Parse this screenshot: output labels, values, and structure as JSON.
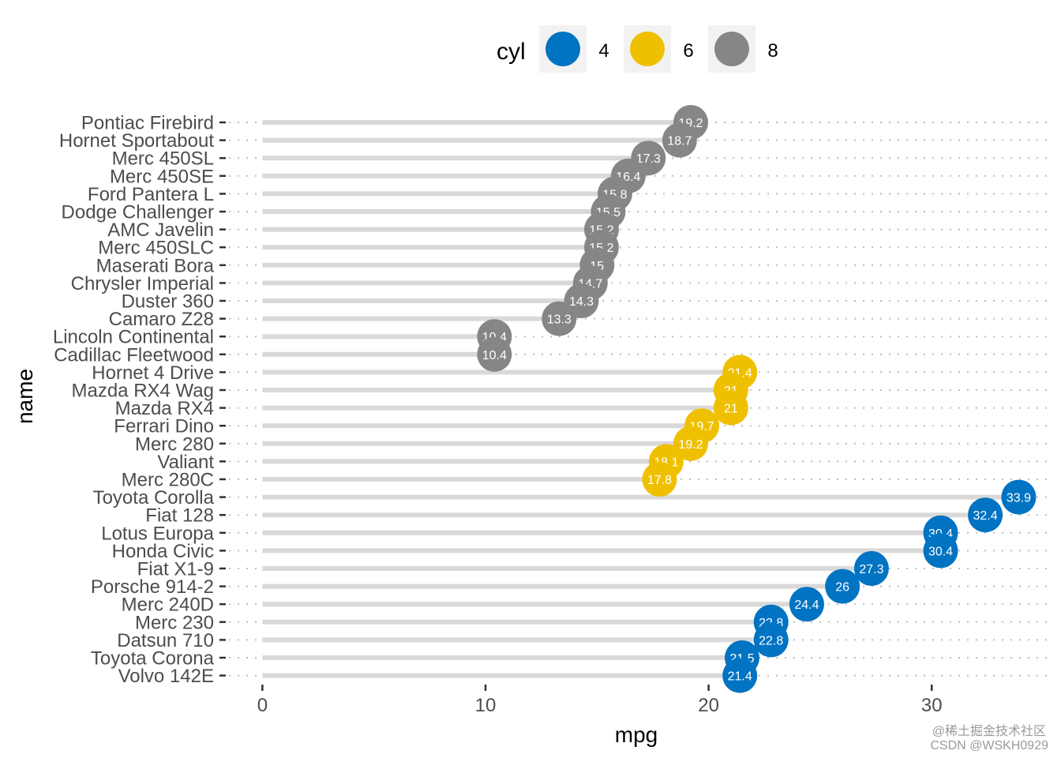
{
  "chart_data": {
    "type": "lollipop",
    "xlabel": "mpg",
    "ylabel": "name",
    "xlim": [
      -1.5,
      35.3
    ],
    "xticks": [
      0,
      10,
      20,
      30
    ],
    "grid": "dotted-horizontal",
    "legend": {
      "title": "cyl",
      "position": "top",
      "entries": [
        {
          "label": "4",
          "color": "#0073C2"
        },
        {
          "label": "6",
          "color": "#EFC000"
        },
        {
          "label": "8",
          "color": "#868686"
        }
      ]
    },
    "colors": {
      "4": "#0073C2",
      "6": "#EFC000",
      "8": "#868686",
      "segment": "#d9d9d9"
    },
    "rows": [
      {
        "name": "Pontiac Firebird",
        "mpg": 19.2,
        "cyl": "8",
        "label": "19.2"
      },
      {
        "name": "Hornet Sportabout",
        "mpg": 18.7,
        "cyl": "8",
        "label": "18.7"
      },
      {
        "name": "Merc 450SL",
        "mpg": 17.3,
        "cyl": "8",
        "label": "17.3"
      },
      {
        "name": "Merc 450SE",
        "mpg": 16.4,
        "cyl": "8",
        "label": "16.4"
      },
      {
        "name": "Ford Pantera L",
        "mpg": 15.8,
        "cyl": "8",
        "label": "15.8"
      },
      {
        "name": "Dodge Challenger",
        "mpg": 15.5,
        "cyl": "8",
        "label": "15.5"
      },
      {
        "name": "AMC Javelin",
        "mpg": 15.2,
        "cyl": "8",
        "label": "15.2"
      },
      {
        "name": "Merc 450SLC",
        "mpg": 15.2,
        "cyl": "8",
        "label": "15.2"
      },
      {
        "name": "Maserati Bora",
        "mpg": 15.0,
        "cyl": "8",
        "label": "15"
      },
      {
        "name": "Chrysler Imperial",
        "mpg": 14.7,
        "cyl": "8",
        "label": "14.7"
      },
      {
        "name": "Duster 360",
        "mpg": 14.3,
        "cyl": "8",
        "label": "14.3"
      },
      {
        "name": "Camaro Z28",
        "mpg": 13.3,
        "cyl": "8",
        "label": "13.3"
      },
      {
        "name": "Lincoln Continental",
        "mpg": 10.4,
        "cyl": "8",
        "label": "10.4"
      },
      {
        "name": "Cadillac Fleetwood",
        "mpg": 10.4,
        "cyl": "8",
        "label": "10.4"
      },
      {
        "name": "Hornet 4 Drive",
        "mpg": 21.4,
        "cyl": "6",
        "label": "21.4"
      },
      {
        "name": "Mazda RX4 Wag",
        "mpg": 21.0,
        "cyl": "6",
        "label": "21"
      },
      {
        "name": "Mazda RX4",
        "mpg": 21.0,
        "cyl": "6",
        "label": "21"
      },
      {
        "name": "Ferrari Dino",
        "mpg": 19.7,
        "cyl": "6",
        "label": "19.7"
      },
      {
        "name": "Merc 280",
        "mpg": 19.2,
        "cyl": "6",
        "label": "19.2"
      },
      {
        "name": "Valiant",
        "mpg": 18.1,
        "cyl": "6",
        "label": "18.1"
      },
      {
        "name": "Merc 280C",
        "mpg": 17.8,
        "cyl": "6",
        "label": "17.8"
      },
      {
        "name": "Toyota Corolla",
        "mpg": 33.9,
        "cyl": "4",
        "label": "33.9"
      },
      {
        "name": "Fiat 128",
        "mpg": 32.4,
        "cyl": "4",
        "label": "32.4"
      },
      {
        "name": "Lotus Europa",
        "mpg": 30.4,
        "cyl": "4",
        "label": "30.4"
      },
      {
        "name": "Honda Civic",
        "mpg": 30.4,
        "cyl": "4",
        "label": "30.4"
      },
      {
        "name": "Fiat X1-9",
        "mpg": 27.3,
        "cyl": "4",
        "label": "27.3"
      },
      {
        "name": "Porsche 914-2",
        "mpg": 26.0,
        "cyl": "4",
        "label": "26"
      },
      {
        "name": "Merc 240D",
        "mpg": 24.4,
        "cyl": "4",
        "label": "24.4"
      },
      {
        "name": "Merc 230",
        "mpg": 22.8,
        "cyl": "4",
        "label": "22.8"
      },
      {
        "name": "Datsun 710",
        "mpg": 22.8,
        "cyl": "4",
        "label": "22.8"
      },
      {
        "name": "Toyota Corona",
        "mpg": 21.5,
        "cyl": "4",
        "label": "21.5"
      },
      {
        "name": "Volvo 142E",
        "mpg": 21.4,
        "cyl": "4",
        "label": "21.4"
      }
    ]
  },
  "watermark": {
    "line1": "@稀土掘金技术社区",
    "line2": "CSDN @WSKH0929"
  }
}
